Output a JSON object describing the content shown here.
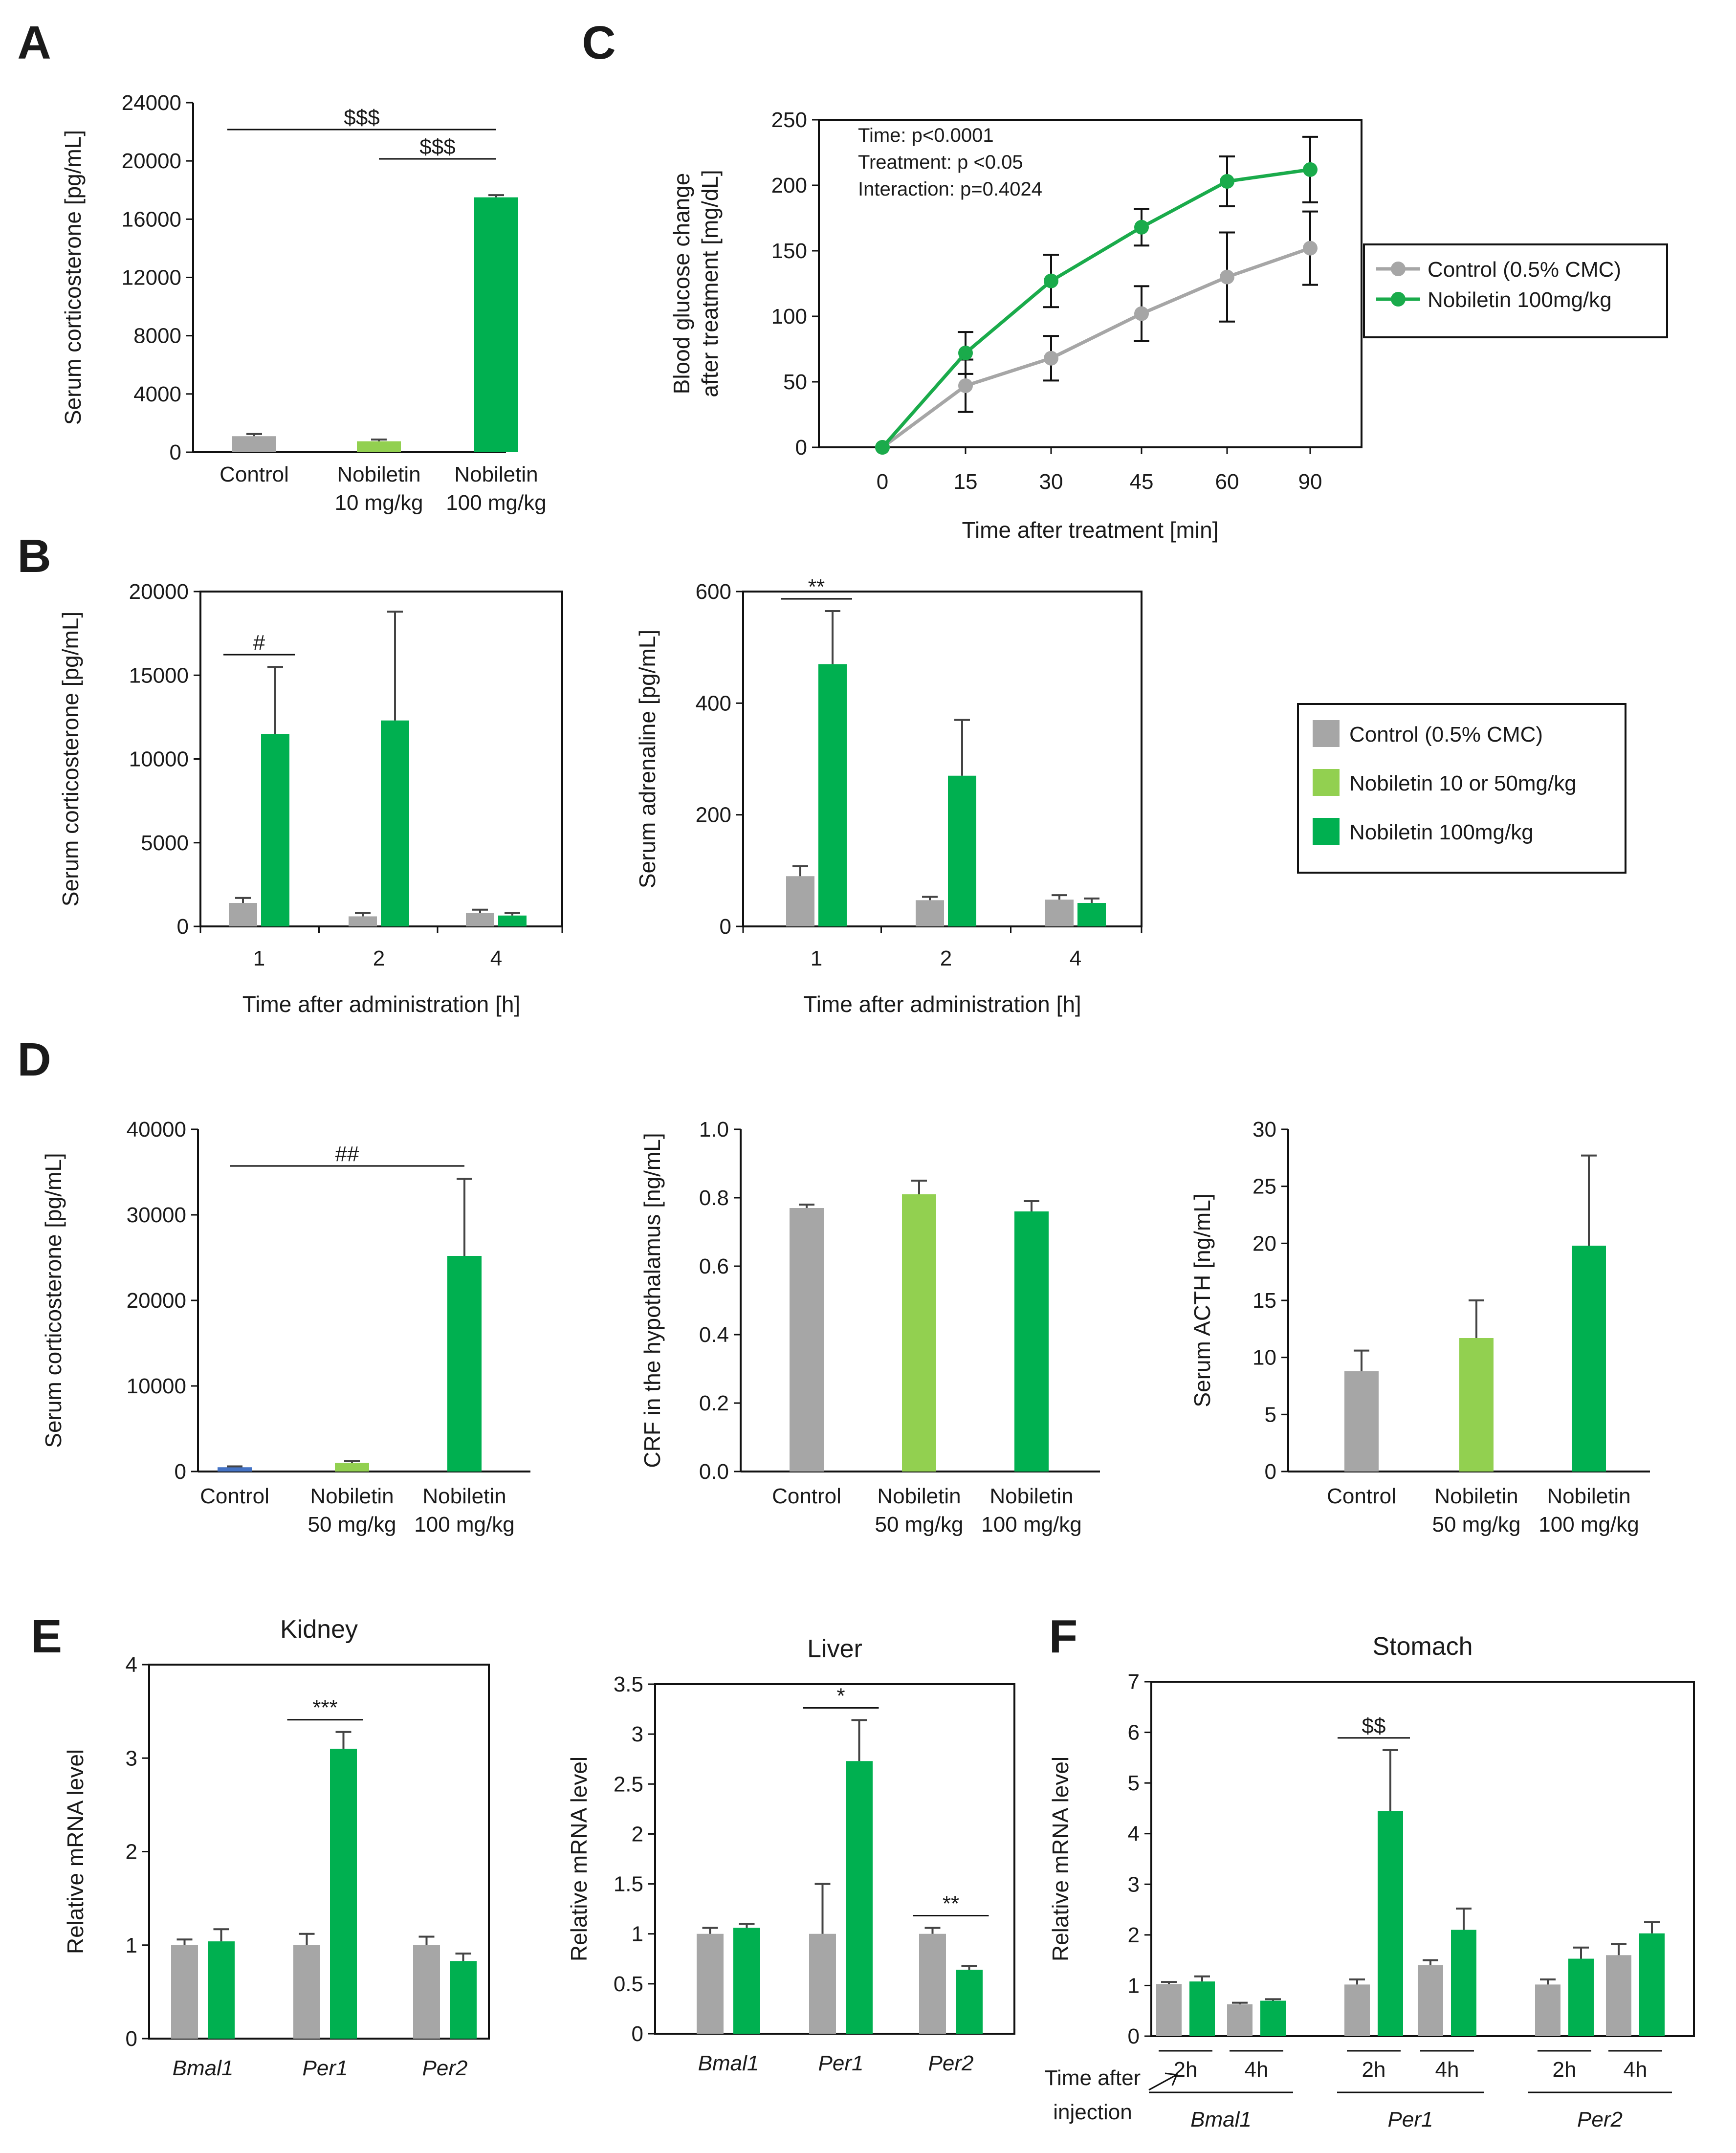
{
  "colors": {
    "control": "#a6a6a6",
    "nob_low": "#92d050",
    "nob_high": "#00b050",
    "control_blue": "#4472c4",
    "line_control": "#a6a6a6",
    "line_nob": "#1aab4b"
  },
  "chart_data": [
    {
      "id": "A",
      "type": "bar",
      "panel_label": "A",
      "title": "",
      "ylabel": "Serum corticosterone [pg/mL]",
      "xlabel": "",
      "ylim": [
        0,
        24000
      ],
      "yticks": [
        "0",
        "4000",
        "8000",
        "12000",
        "16000",
        "20000",
        "24000"
      ],
      "categories": [
        "Control",
        "Nobiletin\n10 mg/kg",
        "Nobiletin\n100 mg/kg"
      ],
      "values": [
        1100,
        750,
        17500
      ],
      "errors": [
        150,
        120,
        150
      ],
      "bar_colors": [
        "control",
        "nob_low",
        "nob_high"
      ],
      "significance": [
        {
          "from": 0,
          "to": 2,
          "label": "$$$"
        },
        {
          "from": 1,
          "to": 2,
          "label": "$$$"
        }
      ]
    },
    {
      "id": "C",
      "type": "line",
      "panel_label": "C",
      "ylabel": "Blood glucose change\nafter treatment  [mg/dL]",
      "xlabel": "Time after treatment [min]",
      "x": [
        "0",
        "15",
        "30",
        "45",
        "60",
        "90"
      ],
      "ylim": [
        0,
        250
      ],
      "yticks": [
        "0",
        "50",
        "100",
        "150",
        "200",
        "250"
      ],
      "annotations": [
        "Time: p<0.0001",
        "Treatment: p <0.05",
        "Interaction: p=0.4024"
      ],
      "series": [
        {
          "name": "Control (0.5% CMC)",
          "values": [
            0,
            47,
            68,
            102,
            130,
            152
          ],
          "errors": [
            0,
            20,
            17,
            21,
            34,
            28
          ],
          "color": "line_control"
        },
        {
          "name": "Nobiletin 100mg/kg",
          "values": [
            0,
            72,
            127,
            168,
            203,
            212
          ],
          "errors": [
            0,
            16,
            20,
            14,
            19,
            25
          ],
          "color": "line_nob"
        }
      ]
    },
    {
      "id": "B1",
      "type": "bar",
      "panel_label": "B",
      "ylabel": "Serum corticosterone [pg/mL]",
      "xlabel": "Time after administration  [h]",
      "ylim": [
        0,
        20000
      ],
      "yticks": [
        "0",
        "5000",
        "10000",
        "15000",
        "20000"
      ],
      "categories": [
        "1",
        "2",
        "4"
      ],
      "series": [
        {
          "name": "Control (0.5% CMC)",
          "values": [
            1400,
            600,
            800
          ],
          "errors": [
            300,
            200,
            200
          ],
          "color": "control"
        },
        {
          "name": "Nobiletin 100mg/kg",
          "values": [
            11500,
            12300,
            650
          ],
          "errors": [
            4000,
            6500,
            150
          ],
          "color": "nob_high"
        }
      ],
      "significance": [
        {
          "group": 0,
          "label": "#"
        }
      ]
    },
    {
      "id": "B2",
      "type": "bar",
      "ylabel": "Serum adrenaline [pg/mL]",
      "xlabel": "Time after administration [h]",
      "ylim": [
        0,
        600
      ],
      "yticks": [
        "0",
        "200",
        "400",
        "600"
      ],
      "categories": [
        "1",
        "2",
        "4"
      ],
      "series": [
        {
          "name": "Control (0.5% CMC)",
          "values": [
            90,
            47,
            48
          ],
          "errors": [
            18,
            6,
            8
          ],
          "color": "control"
        },
        {
          "name": "Nobiletin 100mg/kg",
          "values": [
            470,
            270,
            42
          ],
          "errors": [
            95,
            100,
            8
          ],
          "color": "nob_high"
        }
      ],
      "significance": [
        {
          "group": 0,
          "label": "**"
        }
      ]
    },
    {
      "id": "D1",
      "type": "bar",
      "panel_label": "D",
      "ylabel": "Serum corticosterone [pg/mL]",
      "xlabel": "",
      "ylim": [
        0,
        40000
      ],
      "yticks": [
        "0",
        "10000",
        "20000",
        "30000",
        "40000"
      ],
      "categories": [
        "Control",
        "Nobiletin\n50 mg/kg",
        "Nobiletin\n100 mg/kg"
      ],
      "values": [
        500,
        1000,
        25200
      ],
      "errors": [
        100,
        200,
        9000
      ],
      "bar_colors": [
        "control_blue",
        "nob_low",
        "nob_high"
      ],
      "significance": [
        {
          "from": 0,
          "to": 2,
          "label": "##"
        }
      ]
    },
    {
      "id": "D2",
      "type": "bar",
      "ylabel": "CRF in the hypothalamus [ng/mL]",
      "xlabel": "",
      "ylim": [
        0,
        1.0
      ],
      "yticks": [
        "0.0",
        "0.2",
        "0.4",
        "0.6",
        "0.8",
        "1.0"
      ],
      "categories": [
        "Control",
        "Nobiletin\n50 mg/kg",
        "Nobiletin\n100 mg/kg"
      ],
      "values": [
        0.77,
        0.81,
        0.76
      ],
      "errors": [
        0.01,
        0.04,
        0.03
      ],
      "bar_colors": [
        "control",
        "nob_low",
        "nob_high"
      ]
    },
    {
      "id": "D3",
      "type": "bar",
      "ylabel": "Serum ACTH [ng/mL]",
      "xlabel": "",
      "ylim": [
        0,
        30
      ],
      "yticks": [
        "0",
        "5",
        "10",
        "15",
        "20",
        "25",
        "30"
      ],
      "categories": [
        "Control",
        "Nobiletin\n50 mg/kg",
        "Nobiletin\n100 mg/kg"
      ],
      "values": [
        8.8,
        11.7,
        19.8
      ],
      "errors": [
        1.8,
        3.3,
        7.9
      ],
      "bar_colors": [
        "control",
        "nob_low",
        "nob_high"
      ]
    },
    {
      "id": "E1",
      "type": "bar",
      "panel_label": "E",
      "title": "Kidney",
      "ylabel": "Relative mRNA level",
      "ylim": [
        0,
        4
      ],
      "yticks": [
        "0",
        "1",
        "2",
        "3",
        "4"
      ],
      "categories": [
        "Bmal1",
        "Per1",
        "Per2"
      ],
      "series": [
        {
          "name": "Control (0.5% CMC)",
          "values": [
            1.0,
            1.0,
            1.0
          ],
          "errors": [
            0.06,
            0.12,
            0.09
          ],
          "color": "control"
        },
        {
          "name": "Nobiletin 100mg/kg",
          "values": [
            1.04,
            3.1,
            0.83
          ],
          "errors": [
            0.13,
            0.18,
            0.08
          ],
          "color": "nob_high"
        }
      ],
      "significance": [
        {
          "group": 1,
          "label": "***"
        }
      ]
    },
    {
      "id": "E2",
      "type": "bar",
      "title": "Liver",
      "ylabel": "Relative mRNA level",
      "ylim": [
        0,
        3.5
      ],
      "yticks": [
        "0",
        "0.5",
        "1",
        "1.5",
        "2",
        "2.5",
        "3",
        "3.5"
      ],
      "categories": [
        "Bmal1",
        "Per1",
        "Per2"
      ],
      "series": [
        {
          "name": "Control (0.5% CMC)",
          "values": [
            1.0,
            1.0,
            1.0
          ],
          "errors": [
            0.06,
            0.5,
            0.06
          ],
          "color": "control"
        },
        {
          "name": "Nobiletin 100mg/kg",
          "values": [
            1.06,
            2.73,
            0.64
          ],
          "errors": [
            0.04,
            0.41,
            0.04
          ],
          "color": "nob_high"
        }
      ],
      "significance": [
        {
          "group": 1,
          "label": "*"
        },
        {
          "group": 2,
          "label": "**"
        }
      ]
    },
    {
      "id": "F",
      "type": "bar",
      "panel_label": "F",
      "title": "Stomach",
      "ylabel": "Relative mRNA level",
      "ylim": [
        0,
        7
      ],
      "yticks": [
        "0",
        "1",
        "2",
        "3",
        "4",
        "5",
        "6",
        "7"
      ],
      "genes": [
        "Bmal1",
        "Per1",
        "Per2"
      ],
      "timepoints": [
        "2h",
        "4h"
      ],
      "time_label": [
        "Time after",
        "injection"
      ],
      "series": [
        {
          "name": "Control (0.5% CMC)",
          "values": [
            1.03,
            0.63,
            1.02,
            1.4,
            1.02,
            1.6
          ],
          "errors": [
            0.04,
            0.03,
            0.1,
            0.1,
            0.1,
            0.22
          ],
          "color": "control"
        },
        {
          "name": "Nobiletin 100mg/kg",
          "values": [
            1.08,
            0.7,
            4.45,
            2.1,
            1.53,
            2.03
          ],
          "errors": [
            0.1,
            0.03,
            1.2,
            0.42,
            0.22,
            0.22
          ],
          "color": "nob_high"
        }
      ],
      "significance": [
        {
          "group": 2,
          "label": "$$"
        }
      ]
    }
  ],
  "legend_c": [
    "Control (0.5% CMC)",
    "Nobiletin 100mg/kg"
  ],
  "legend_b": [
    "Control (0.5% CMC)",
    "Nobiletin 10 or 50mg/kg",
    "Nobiletin 100mg/kg"
  ]
}
